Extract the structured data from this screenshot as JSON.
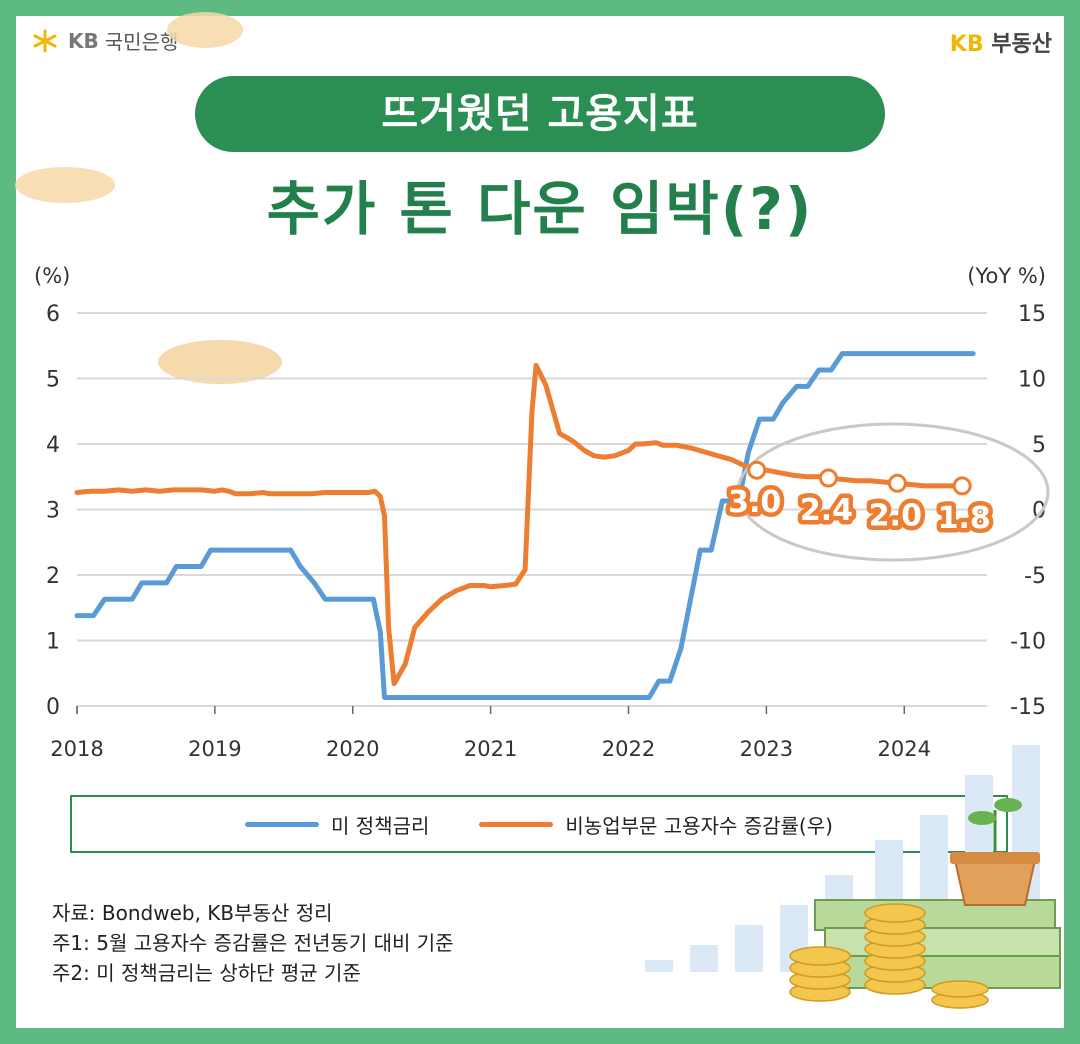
{
  "header": {
    "left_logo": {
      "mark": "KB",
      "name": "국민은행"
    },
    "right_logo": {
      "kb": "KB",
      "name": "부동산"
    }
  },
  "title": "뜨거웠던 고용지표",
  "subtitle": "추가 톤 다운 임박(?)",
  "chart_data": {
    "type": "line",
    "left_unit": "(%)",
    "right_unit": "(YoY %)",
    "left_ylim": [
      0,
      6
    ],
    "left_ticks": [
      "0",
      "1",
      "2",
      "3",
      "4",
      "5",
      "6"
    ],
    "right_ylim": [
      -15,
      15
    ],
    "right_ticks": [
      "-15",
      "-10",
      "-5",
      "0",
      "5",
      "10",
      "15"
    ],
    "x_range": [
      2018.0,
      2024.6
    ],
    "x_ticks": [
      "2018",
      "2019",
      "2020",
      "2021",
      "2022",
      "2023",
      "2024"
    ],
    "grid": true,
    "colors": {
      "policy_rate": "#5b9bd5",
      "payroll": "#ed7d31"
    },
    "series": [
      {
        "name": "미 정책금리",
        "axis": "left",
        "points": [
          [
            2018.0,
            1.38
          ],
          [
            2018.12,
            1.38
          ],
          [
            2018.2,
            1.63
          ],
          [
            2018.4,
            1.63
          ],
          [
            2018.47,
            1.88
          ],
          [
            2018.65,
            1.88
          ],
          [
            2018.72,
            2.13
          ],
          [
            2018.9,
            2.13
          ],
          [
            2018.97,
            2.38
          ],
          [
            2019.55,
            2.38
          ],
          [
            2019.62,
            2.13
          ],
          [
            2019.72,
            1.88
          ],
          [
            2019.8,
            1.63
          ],
          [
            2020.15,
            1.63
          ],
          [
            2020.2,
            1.13
          ],
          [
            2020.23,
            0.13
          ],
          [
            2022.15,
            0.13
          ],
          [
            2022.22,
            0.38
          ],
          [
            2022.3,
            0.38
          ],
          [
            2022.38,
            0.88
          ],
          [
            2022.45,
            1.63
          ],
          [
            2022.52,
            2.38
          ],
          [
            2022.6,
            2.38
          ],
          [
            2022.68,
            3.13
          ],
          [
            2022.8,
            3.13
          ],
          [
            2022.87,
            3.88
          ],
          [
            2022.95,
            4.38
          ],
          [
            2023.05,
            4.38
          ],
          [
            2023.12,
            4.63
          ],
          [
            2023.22,
            4.88
          ],
          [
            2023.3,
            4.88
          ],
          [
            2023.38,
            5.13
          ],
          [
            2023.47,
            5.13
          ],
          [
            2023.55,
            5.38
          ],
          [
            2024.5,
            5.38
          ]
        ]
      },
      {
        "name": "비농업부문 고용자수 증감률(우)",
        "axis": "right",
        "points": [
          [
            2018.0,
            1.3
          ],
          [
            2018.1,
            1.4
          ],
          [
            2018.2,
            1.4
          ],
          [
            2018.3,
            1.5
          ],
          [
            2018.4,
            1.4
          ],
          [
            2018.5,
            1.5
          ],
          [
            2018.6,
            1.4
          ],
          [
            2018.7,
            1.5
          ],
          [
            2018.8,
            1.5
          ],
          [
            2018.9,
            1.5
          ],
          [
            2019.0,
            1.4
          ],
          [
            2019.05,
            1.5
          ],
          [
            2019.1,
            1.4
          ],
          [
            2019.15,
            1.2
          ],
          [
            2019.25,
            1.2
          ],
          [
            2019.35,
            1.3
          ],
          [
            2019.4,
            1.2
          ],
          [
            2019.5,
            1.2
          ],
          [
            2019.6,
            1.2
          ],
          [
            2019.7,
            1.2
          ],
          [
            2019.8,
            1.3
          ],
          [
            2019.9,
            1.3
          ],
          [
            2020.0,
            1.3
          ],
          [
            2020.05,
            1.3
          ],
          [
            2020.12,
            1.3
          ],
          [
            2020.16,
            1.4
          ],
          [
            2020.2,
            1.0
          ],
          [
            2020.23,
            -0.5
          ],
          [
            2020.26,
            -9.0
          ],
          [
            2020.3,
            -13.3
          ],
          [
            2020.38,
            -11.8
          ],
          [
            2020.45,
            -9.0
          ],
          [
            2020.55,
            -7.8
          ],
          [
            2020.65,
            -6.8
          ],
          [
            2020.75,
            -6.2
          ],
          [
            2020.85,
            -5.8
          ],
          [
            2020.95,
            -5.8
          ],
          [
            2021.0,
            -5.9
          ],
          [
            2021.1,
            -5.8
          ],
          [
            2021.18,
            -5.7
          ],
          [
            2021.25,
            -4.6
          ],
          [
            2021.3,
            7.5
          ],
          [
            2021.33,
            11.0
          ],
          [
            2021.4,
            9.5
          ],
          [
            2021.5,
            5.8
          ],
          [
            2021.6,
            5.2
          ],
          [
            2021.68,
            4.5
          ],
          [
            2021.75,
            4.1
          ],
          [
            2021.82,
            4.0
          ],
          [
            2021.9,
            4.1
          ],
          [
            2022.0,
            4.5
          ],
          [
            2022.05,
            5.0
          ],
          [
            2022.1,
            5.0
          ],
          [
            2022.2,
            5.1
          ],
          [
            2022.25,
            4.9
          ],
          [
            2022.35,
            4.9
          ],
          [
            2022.45,
            4.7
          ],
          [
            2022.55,
            4.4
          ],
          [
            2022.65,
            4.1
          ],
          [
            2022.75,
            3.8
          ],
          [
            2022.85,
            3.3
          ],
          [
            2022.93,
            3.0
          ],
          [
            2023.0,
            3.0
          ],
          [
            2023.1,
            2.8
          ],
          [
            2023.2,
            2.6
          ],
          [
            2023.3,
            2.5
          ],
          [
            2023.4,
            2.5
          ],
          [
            2023.45,
            2.4
          ],
          [
            2023.55,
            2.3
          ],
          [
            2023.65,
            2.2
          ],
          [
            2023.75,
            2.2
          ],
          [
            2023.85,
            2.1
          ],
          [
            2023.95,
            2.0
          ],
          [
            2024.05,
            1.9
          ],
          [
            2024.15,
            1.8
          ],
          [
            2024.25,
            1.8
          ],
          [
            2024.35,
            1.8
          ],
          [
            2024.42,
            1.8
          ]
        ]
      }
    ],
    "annotations": [
      {
        "x": 2022.93,
        "y": 3.0,
        "label": "3.0"
      },
      {
        "x": 2023.45,
        "y": 2.4,
        "label": "2.4"
      },
      {
        "x": 2023.95,
        "y": 2.0,
        "label": "2.0"
      },
      {
        "x": 2024.42,
        "y": 1.8,
        "label": "1.8"
      }
    ]
  },
  "legend": {
    "items": [
      {
        "label": "미 정책금리",
        "color": "#5b9bd5"
      },
      {
        "label": "비농업부문 고용자수 증감률(우)",
        "color": "#ed7d31"
      }
    ]
  },
  "notes": {
    "source": "자료: Bondweb, KB부동산 정리",
    "note1": "주1: 5월 고용자수 증감률은 전년동기 대비 기준",
    "note2": "주2: 미 정책금리는 상하단 평균 기준"
  }
}
